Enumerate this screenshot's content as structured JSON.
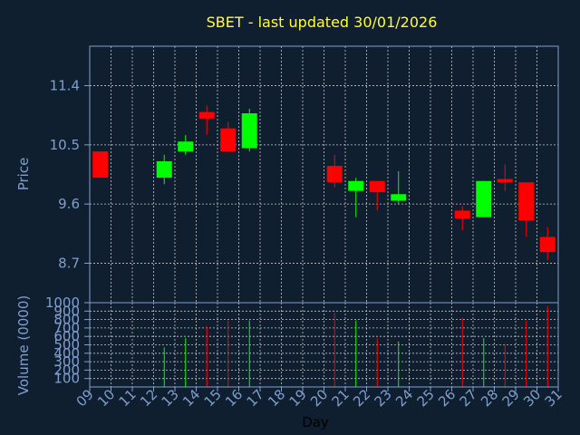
{
  "chart_data": [
    {
      "type": "candlestick",
      "title": "SBET - last updated 30/01/2026",
      "ylabel": "Price",
      "ylim": [
        8.1,
        12.0
      ],
      "yticks": [
        8.7,
        9.6,
        10.5,
        11.4
      ],
      "ytick_labels": [
        "8.7",
        "9.6",
        "10.5",
        "11.4"
      ],
      "up_color": "#00ff00",
      "down_color": "#ff0000",
      "candles": [
        {
          "day": "09",
          "open": 10.4,
          "high": 10.4,
          "low": 10.0,
          "close": 10.0
        },
        {
          "day": "12",
          "open": 10.0,
          "high": 10.35,
          "low": 9.9,
          "close": 10.25
        },
        {
          "day": "13",
          "open": 10.4,
          "high": 10.65,
          "low": 10.35,
          "close": 10.55
        },
        {
          "day": "14",
          "open": 11.0,
          "high": 11.1,
          "low": 10.65,
          "close": 10.9
        },
        {
          "day": "15",
          "open": 10.75,
          "high": 10.85,
          "low": 10.4,
          "close": 10.4
        },
        {
          "day": "16",
          "open": 10.45,
          "high": 11.05,
          "low": 10.4,
          "close": 10.98
        },
        {
          "day": "20",
          "open": 10.18,
          "high": 10.35,
          "low": 9.85,
          "close": 9.93
        },
        {
          "day": "21",
          "open": 9.8,
          "high": 10.0,
          "low": 9.4,
          "close": 9.95
        },
        {
          "day": "22",
          "open": 9.95,
          "high": 9.95,
          "low": 9.5,
          "close": 9.78
        },
        {
          "day": "23",
          "open": 9.65,
          "high": 10.1,
          "low": 9.6,
          "close": 9.75
        },
        {
          "day": "26",
          "open": 9.5,
          "high": 9.57,
          "low": 9.2,
          "close": 9.38
        },
        {
          "day": "27",
          "open": 9.4,
          "high": 9.95,
          "low": 9.4,
          "close": 9.95
        },
        {
          "day": "28",
          "open": 9.98,
          "high": 10.2,
          "low": 9.8,
          "close": 9.93
        },
        {
          "day": "29",
          "open": 9.93,
          "high": 9.93,
          "low": 9.1,
          "close": 9.35
        },
        {
          "day": "30",
          "open": 9.1,
          "high": 9.25,
          "low": 8.75,
          "close": 8.87
        }
      ]
    },
    {
      "type": "bar",
      "ylabel": "Volume (0000)",
      "xlabel": "Day",
      "ylim": [
        0,
        1000
      ],
      "yticks": [
        100,
        200,
        300,
        400,
        500,
        600,
        700,
        800,
        900,
        1000
      ],
      "ytick_labels": [
        "100",
        "200",
        "300",
        "400",
        "500",
        "600",
        "700",
        "800",
        "900",
        "1000"
      ],
      "x_categories": [
        "09",
        "10",
        "11",
        "12",
        "13",
        "14",
        "15",
        "16",
        "17",
        "18",
        "19",
        "20",
        "21",
        "22",
        "23",
        "24",
        "25",
        "26",
        "27",
        "28",
        "29",
        "30",
        "31"
      ],
      "volumes": [
        {
          "day": "12",
          "value": 470,
          "direction": "up"
        },
        {
          "day": "13",
          "value": 580,
          "direction": "up"
        },
        {
          "day": "14",
          "value": 720,
          "direction": "down"
        },
        {
          "day": "15",
          "value": 790,
          "direction": "down"
        },
        {
          "day": "16",
          "value": 790,
          "direction": "up"
        },
        {
          "day": "20",
          "value": 880,
          "direction": "down"
        },
        {
          "day": "21",
          "value": 790,
          "direction": "up"
        },
        {
          "day": "22",
          "value": 580,
          "direction": "down"
        },
        {
          "day": "23",
          "value": 540,
          "direction": "up"
        },
        {
          "day": "26",
          "value": 820,
          "direction": "down"
        },
        {
          "day": "27",
          "value": 580,
          "direction": "up"
        },
        {
          "day": "28",
          "value": 510,
          "direction": "down"
        },
        {
          "day": "29",
          "value": 790,
          "direction": "down"
        },
        {
          "day": "30",
          "value": 960,
          "direction": "down"
        }
      ]
    }
  ]
}
